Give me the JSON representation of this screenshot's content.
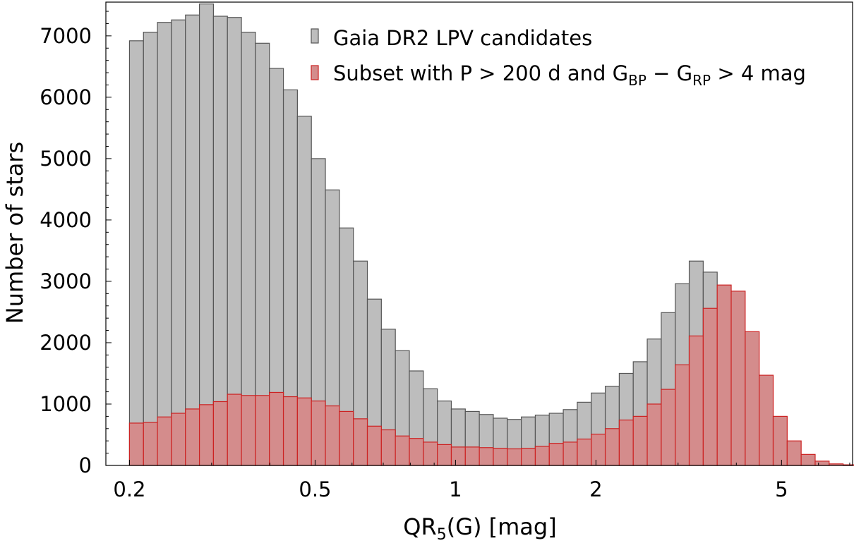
{
  "chart_data": {
    "type": "bar",
    "subtype": "histogram",
    "xlabel": "QR",
    "xlabel_sub": "5",
    "xlabel_rest": "(G)  [mag]",
    "ylabel": "Number of stars",
    "x_scale": "log",
    "xlim": [
      0.178,
      7.1
    ],
    "ylim": [
      0,
      7550
    ],
    "x_ticks": [
      {
        "value": 0.2,
        "label": "0.2"
      },
      {
        "value": 0.5,
        "label": "0.5"
      },
      {
        "value": 1,
        "label": "1"
      },
      {
        "value": 2,
        "label": "2"
      },
      {
        "value": 5,
        "label": "5"
      }
    ],
    "y_ticks": [
      {
        "value": 0,
        "label": "0"
      },
      {
        "value": 1000,
        "label": "1000"
      },
      {
        "value": 2000,
        "label": "2000"
      },
      {
        "value": 3000,
        "label": "3000"
      },
      {
        "value": 4000,
        "label": "4000"
      },
      {
        "value": 5000,
        "label": "5000"
      },
      {
        "value": 6000,
        "label": "6000"
      },
      {
        "value": 7000,
        "label": "7000"
      }
    ],
    "legend_position": "top-right",
    "bin_start": 0.2,
    "bin_width_log10": 0.03,
    "series": [
      {
        "name": "Gaia DR2 LPV candidates",
        "color": "#bdbdbd",
        "edge": "#555555",
        "values": [
          6920,
          7060,
          7220,
          7260,
          7340,
          7520,
          7320,
          7300,
          7060,
          6880,
          6470,
          6120,
          5690,
          5000,
          4490,
          3870,
          3330,
          2710,
          2220,
          1870,
          1540,
          1250,
          1050,
          920,
          880,
          830,
          770,
          750,
          790,
          820,
          850,
          910,
          1030,
          1180,
          1290,
          1500,
          1690,
          2060,
          2490,
          2960,
          3330,
          3150,
          2500,
          1660,
          900,
          460,
          200,
          80,
          35,
          15,
          0,
          10,
          12,
          0,
          0,
          0,
          0,
          0,
          5,
          5,
          5,
          0
        ]
      },
      {
        "name": "Subset with P > 200 d and G_BP − G_RP > 4 mag",
        "color": "#d48c8c",
        "edge": "#cc2222",
        "values": [
          690,
          700,
          790,
          850,
          920,
          990,
          1040,
          1160,
          1140,
          1140,
          1190,
          1120,
          1100,
          1050,
          970,
          880,
          760,
          640,
          580,
          480,
          440,
          380,
          340,
          300,
          300,
          290,
          280,
          270,
          280,
          310,
          360,
          380,
          430,
          510,
          600,
          740,
          800,
          1000,
          1240,
          1640,
          2110,
          2560,
          2940,
          2840,
          2180,
          1470,
          800,
          400,
          180,
          70,
          25,
          10,
          8,
          0,
          0,
          0,
          0,
          0,
          0,
          0,
          0,
          0
        ]
      }
    ],
    "legend": [
      {
        "text": "Gaia DR2 LPV candidates"
      },
      {
        "pre": "Subset with P > 200 d and G",
        "sub1": "BP",
        "mid": " − G",
        "sub2": "RP",
        "post": " > 4 mag"
      }
    ]
  }
}
